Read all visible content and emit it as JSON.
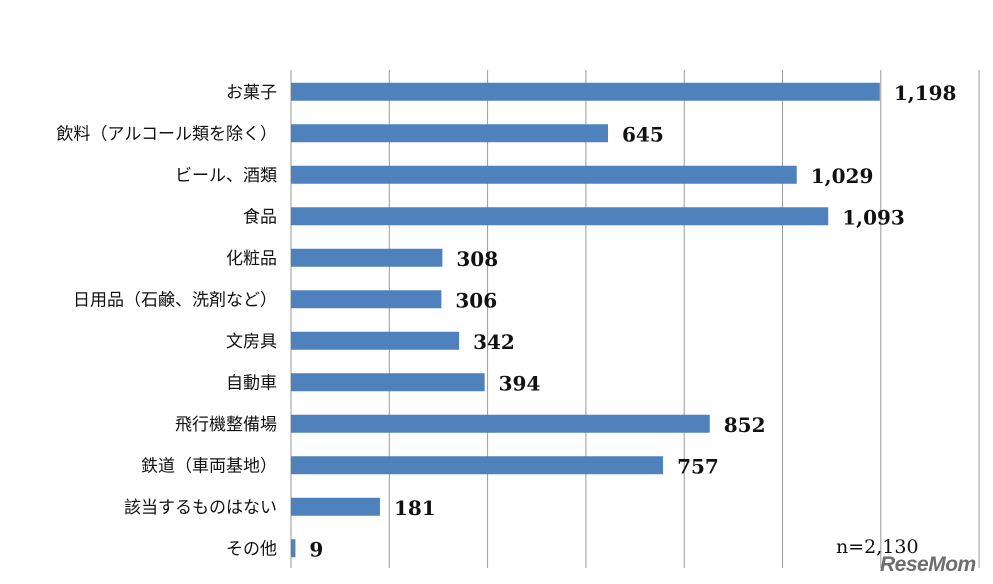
{
  "chart_data": {
    "type": "bar",
    "orientation": "horizontal",
    "categories": [
      "お菓子",
      "飲料（アルコール類を除く）",
      "ビール、酒類",
      "食品",
      "化粧品",
      "日用品（石鹸、洗剤など）",
      "文房具",
      "自動車",
      "飛行機整備場",
      "鉄道（車両基地）",
      "該当するものはない",
      "その他"
    ],
    "values": [
      1198,
      645,
      1029,
      1093,
      308,
      306,
      342,
      394,
      852,
      757,
      181,
      9
    ],
    "value_labels": [
      "1,198",
      "645",
      "1,029",
      "1,093",
      "308",
      "306",
      "342",
      "394",
      "852",
      "757",
      "181",
      "9"
    ],
    "xlim": [
      0,
      1400
    ],
    "grid": true,
    "bar_color": "#4f81bd"
  },
  "note": "n=2,130",
  "logo": "ReseMom"
}
